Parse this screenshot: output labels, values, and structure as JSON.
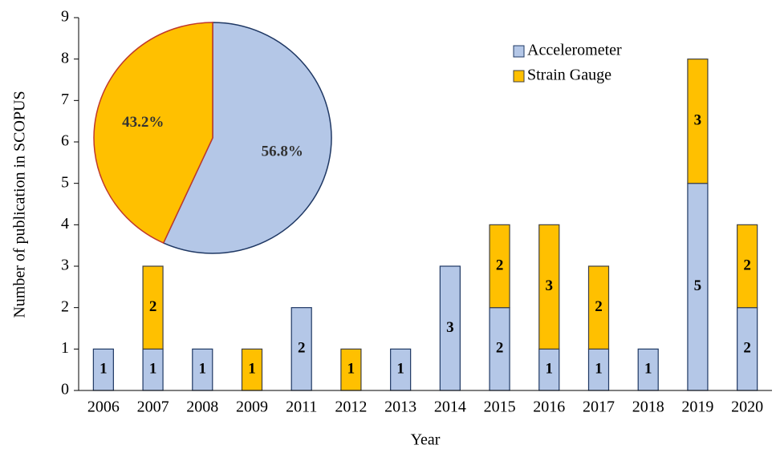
{
  "chart_data": [
    {
      "type": "bar",
      "stacked": true,
      "xlabel": "Year",
      "ylabel": "Number of publication in SCOPUS",
      "categories": [
        "2006",
        "2007",
        "2008",
        "2009",
        "2011",
        "2012",
        "2013",
        "2014",
        "2015",
        "2016",
        "2017",
        "2018",
        "2019",
        "2020"
      ],
      "series": [
        {
          "name": "Accelerometer",
          "color": "#b4c7e7",
          "values": [
            1,
            1,
            1,
            0,
            2,
            0,
            1,
            3,
            2,
            1,
            1,
            1,
            5,
            2
          ]
        },
        {
          "name": "Strain Gauge",
          "color": "#ffc000",
          "values": [
            0,
            2,
            0,
            1,
            0,
            1,
            0,
            0,
            2,
            3,
            2,
            0,
            3,
            2
          ]
        }
      ],
      "ylim": [
        0,
        9
      ],
      "yticks": [
        0,
        1,
        2,
        3,
        4,
        5,
        6,
        7,
        8,
        9
      ],
      "grid": false,
      "legend": "upper right"
    },
    {
      "type": "pie",
      "values": [
        56.8,
        43.2
      ],
      "value_labels": [
        "56.8%",
        "43.2%"
      ],
      "colors": [
        "#b4c7e7",
        "#ffc000"
      ]
    }
  ]
}
